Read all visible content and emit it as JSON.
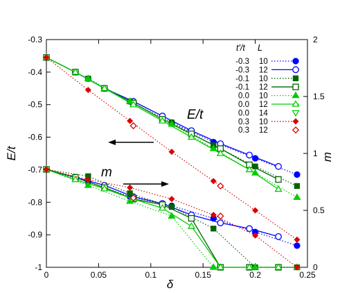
{
  "chart_data": {
    "type": "line",
    "title": "",
    "xlabel": "δ",
    "ylabel_left": "E/t",
    "ylabel_right": "m",
    "xlim": [
      0,
      0.25
    ],
    "ylim_left": [
      -1,
      -0.3
    ],
    "ylim_right": [
      0,
      2
    ],
    "x_ticks": [
      "0",
      "0.05",
      "0.1",
      "0.15",
      "0.2",
      "0.25"
    ],
    "y_left_ticks": [
      "-1",
      "-0.9",
      "-0.8",
      "-0.7",
      "-0.6",
      "-0.5",
      "-0.4",
      "-0.3"
    ],
    "y_right_ticks": [
      "0",
      "0.5",
      "1",
      "1.5",
      "2"
    ],
    "grid": false,
    "legend_position": "top-right",
    "legend_header": {
      "tprime": "t'/t",
      "L": "L"
    },
    "annotations": [
      {
        "text": "E/t",
        "arrow": "left"
      },
      {
        "text": "m",
        "arrow": "right"
      }
    ],
    "series": [
      {
        "tprime": "-0.3",
        "L": "10",
        "color": "#0000ff",
        "marker": "circle-filled",
        "line": "dotted",
        "energy": [
          [
            0,
            -0.7
          ],
          [
            0.04,
            -0.725
          ],
          [
            0.08,
            -0.77
          ],
          [
            0.12,
            -0.81
          ],
          [
            0.16,
            -0.85
          ],
          [
            0.2,
            -0.89
          ],
          [
            0.24,
            -0.935
          ]
        ],
        "m": [
          [
            0,
            0.86
          ],
          [
            0.04,
            0.75
          ],
          [
            0.08,
            0.62
          ],
          [
            0.12,
            0.54
          ],
          [
            0.16,
            0.43
          ],
          [
            0.2,
            0.31
          ],
          [
            0.24,
            0.19
          ]
        ],
        "energy_upper": [
          [
            0,
            -0.355
          ],
          [
            0.04,
            -0.42
          ],
          [
            0.08,
            -0.49
          ],
          [
            0.12,
            -0.555
          ],
          [
            0.16,
            -0.615
          ],
          [
            0.2,
            -0.665
          ],
          [
            0.24,
            -0.715
          ]
        ]
      },
      {
        "tprime": "-0.3",
        "L": "12",
        "color": "#0000ff",
        "marker": "circle-open",
        "line": "solid",
        "energy": [
          [
            0,
            -0.7
          ],
          [
            0.0278,
            -0.715
          ],
          [
            0.0556,
            -0.75
          ],
          [
            0.0833,
            -0.775
          ],
          [
            0.1111,
            -0.8
          ],
          [
            0.1389,
            -0.83
          ],
          [
            0.1667,
            -0.865
          ],
          [
            0.1944,
            -0.895
          ],
          [
            0.2222,
            -0.93
          ]
        ],
        "m": [
          [
            0,
            0.86
          ],
          [
            0.0278,
            0.79
          ],
          [
            0.0556,
            0.72
          ],
          [
            0.0833,
            0.62
          ],
          [
            0.1111,
            0.56
          ],
          [
            0.1389,
            0.46
          ],
          [
            0.1667,
            0.39
          ],
          [
            0.1944,
            0.34
          ],
          [
            0.2222,
            0.27
          ]
        ],
        "energy_upper": [
          [
            0,
            -0.355
          ],
          [
            0.0278,
            -0.4
          ],
          [
            0.0556,
            -0.45
          ],
          [
            0.0833,
            -0.49
          ],
          [
            0.1111,
            -0.535
          ],
          [
            0.1389,
            -0.58
          ],
          [
            0.1667,
            -0.62
          ],
          [
            0.1944,
            -0.655
          ],
          [
            0.2222,
            -0.69
          ]
        ]
      },
      {
        "tprime": "-0.1",
        "L": "10",
        "color": "#006400",
        "marker": "square-filled",
        "line": "dotted",
        "energy": [
          [
            0,
            -0.7
          ],
          [
            0.04,
            -0.72
          ],
          [
            0.08,
            -0.775
          ],
          [
            0.12,
            -0.815
          ],
          [
            0.16,
            -0.88
          ],
          [
            0.2,
            -1.0
          ],
          [
            0.24,
            -1.0
          ]
        ],
        "m": [
          [
            0,
            0.86
          ],
          [
            0.04,
            0.8
          ],
          [
            0.08,
            0.65
          ],
          [
            0.12,
            0.53
          ],
          [
            0.16,
            0.34
          ],
          [
            0.2,
            0.0
          ],
          [
            0.24,
            0.0
          ]
        ],
        "energy_upper": [
          [
            0,
            -0.355
          ],
          [
            0.04,
            -0.42
          ],
          [
            0.08,
            -0.49
          ],
          [
            0.12,
            -0.555
          ],
          [
            0.16,
            -0.625
          ],
          [
            0.2,
            -0.69
          ],
          [
            0.24,
            -0.75
          ]
        ]
      },
      {
        "tprime": "-0.1",
        "L": "12",
        "color": "#006400",
        "marker": "square-open",
        "line": "solid",
        "energy": [
          [
            0,
            -0.7
          ],
          [
            0.0278,
            -0.72
          ],
          [
            0.0556,
            -0.75
          ],
          [
            0.0833,
            -0.78
          ],
          [
            0.1111,
            -0.805
          ],
          [
            0.1389,
            -0.84
          ],
          [
            0.1667,
            -1.0
          ],
          [
            0.1944,
            -1.0
          ],
          [
            0.2222,
            -1.0
          ]
        ],
        "m": [
          [
            0,
            0.86
          ],
          [
            0.0278,
            0.79
          ],
          [
            0.0556,
            0.7
          ],
          [
            0.0833,
            0.6
          ],
          [
            0.1111,
            0.55
          ],
          [
            0.1389,
            0.43
          ],
          [
            0.1667,
            0.0
          ],
          [
            0.1944,
            0.0
          ],
          [
            0.2222,
            0.0
          ]
        ],
        "energy_upper": [
          [
            0,
            -0.355
          ],
          [
            0.0278,
            -0.4
          ],
          [
            0.0556,
            -0.45
          ],
          [
            0.0833,
            -0.495
          ],
          [
            0.1111,
            -0.545
          ],
          [
            0.1389,
            -0.59
          ],
          [
            0.1667,
            -0.635
          ],
          [
            0.1944,
            -0.685
          ],
          [
            0.2222,
            -0.73
          ]
        ]
      },
      {
        "tprime": "0.0",
        "L": "10",
        "color": "#00cc00",
        "marker": "triangle-filled",
        "line": "dotted",
        "energy": [
          [
            0,
            -0.7
          ],
          [
            0.04,
            -0.73
          ],
          [
            0.08,
            -0.78
          ],
          [
            0.12,
            -0.84
          ],
          [
            0.16,
            -1.0
          ],
          [
            0.2,
            -1.0
          ],
          [
            0.24,
            -1.0
          ]
        ],
        "m": [
          [
            0,
            0.86
          ],
          [
            0.04,
            0.72
          ],
          [
            0.08,
            0.58
          ],
          [
            0.12,
            0.45
          ],
          [
            0.16,
            0.0
          ],
          [
            0.2,
            0.0
          ],
          [
            0.24,
            0.0
          ]
        ],
        "energy_upper": [
          [
            0,
            -0.355
          ],
          [
            0.04,
            -0.42
          ],
          [
            0.08,
            -0.49
          ],
          [
            0.12,
            -0.56
          ],
          [
            0.16,
            -0.635
          ],
          [
            0.2,
            -0.71
          ],
          [
            0.24,
            -0.785
          ]
        ]
      },
      {
        "tprime": "0.0",
        "L": "12",
        "color": "#00cc00",
        "marker": "triangle-open",
        "line": "solid",
        "energy": [
          [
            0,
            -0.7
          ],
          [
            0.0278,
            -0.725
          ],
          [
            0.0556,
            -0.755
          ],
          [
            0.0833,
            -0.78
          ],
          [
            0.1111,
            -0.815
          ],
          [
            0.1389,
            -0.875
          ],
          [
            0.1667,
            -1.0
          ],
          [
            0.1944,
            -1.0
          ],
          [
            0.2222,
            -1.0
          ]
        ],
        "m": [
          [
            0,
            0.86
          ],
          [
            0.0278,
            0.77
          ],
          [
            0.0556,
            0.69
          ],
          [
            0.0833,
            0.6
          ],
          [
            0.1111,
            0.52
          ],
          [
            0.1389,
            0.36
          ],
          [
            0.1667,
            0.0
          ],
          [
            0.1944,
            0.0
          ],
          [
            0.2222,
            0.0
          ]
        ],
        "energy_upper": [
          [
            0,
            -0.355
          ],
          [
            0.0278,
            -0.4
          ],
          [
            0.0556,
            -0.45
          ],
          [
            0.0833,
            -0.5
          ],
          [
            0.1111,
            -0.55
          ],
          [
            0.1389,
            -0.6
          ],
          [
            0.1667,
            -0.65
          ],
          [
            0.1944,
            -0.7
          ],
          [
            0.2222,
            -0.76
          ]
        ]
      },
      {
        "tprime": "0.0",
        "L": "14",
        "color": "#00cc00",
        "marker": "triangle-down-open",
        "line": "none",
        "energy": [],
        "m": [],
        "energy_upper": []
      },
      {
        "tprime": "0.3",
        "L": "10",
        "color": "#dd0000",
        "marker": "diamond-filled",
        "line": "dotted",
        "energy": [
          [
            0,
            -0.7
          ],
          [
            0.04,
            -0.72
          ],
          [
            0.08,
            -0.755
          ],
          [
            0.12,
            -0.8
          ],
          [
            0.16,
            -0.845
          ],
          [
            0.2,
            -0.905
          ],
          [
            0.24,
            -1.0
          ]
        ],
        "m": [
          [
            0,
            0.86
          ],
          [
            0.04,
            0.77
          ],
          [
            0.08,
            0.7
          ],
          [
            0.12,
            0.6
          ],
          [
            0.16,
            0.46
          ],
          [
            0.2,
            0.28
          ],
          [
            0.24,
            0.0
          ]
        ],
        "energy_upper": [
          [
            0,
            -0.355
          ],
          [
            0.04,
            -0.455
          ],
          [
            0.08,
            -0.55
          ],
          [
            0.12,
            -0.645
          ],
          [
            0.16,
            -0.735
          ],
          [
            0.2,
            -0.825
          ],
          [
            0.24,
            -0.915
          ]
        ]
      },
      {
        "tprime": "0.3",
        "L": "12",
        "color": "#dd0000",
        "marker": "diamond-open",
        "line": "none",
        "energy": [],
        "m": [
          [
            0.0833,
            0.61
          ],
          [
            0.1667,
            0.45
          ]
        ],
        "energy_upper": [
          [
            0.0833,
            -0.565
          ],
          [
            0.1667,
            -0.75
          ]
        ]
      }
    ]
  }
}
